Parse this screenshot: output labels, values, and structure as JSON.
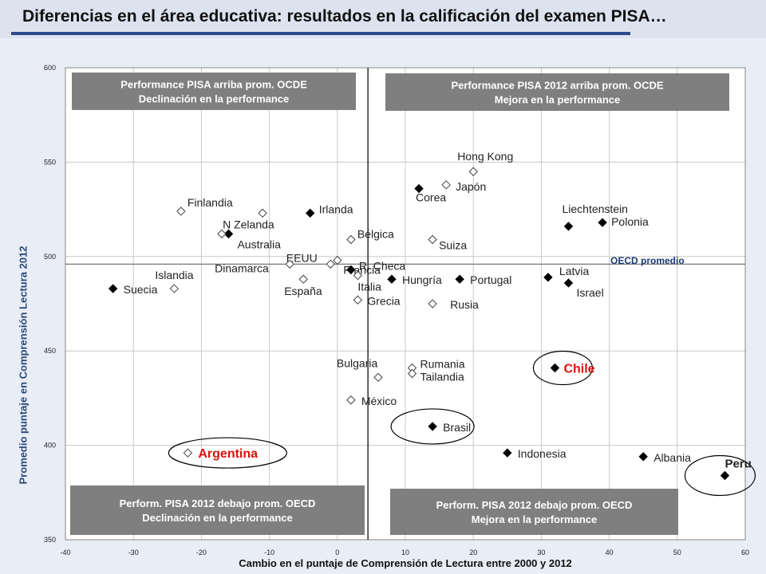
{
  "title": "Diferencias en el área educativa: resultados en la calificación del examen PISA…",
  "chart_data": {
    "type": "scatter",
    "xlabel": "Cambio en el puntaje de Comprensión de Lectura entre 2000 y 2012",
    "ylabel": "Promedio puntaje en Comprensión Lectura 2012",
    "xlim": [
      -40,
      60
    ],
    "ylim": [
      350,
      600
    ],
    "x_ticks": [
      -40,
      -30,
      -20,
      -10,
      0,
      10,
      20,
      30,
      40,
      50,
      60
    ],
    "y_ticks": [
      350,
      400,
      450,
      500,
      550,
      600
    ],
    "grid": true,
    "reference_lines": {
      "oecd_average_y": 496,
      "oecd_change_x": 4.5,
      "oecd_label": "OECD promedio"
    },
    "quadrant_labels": [
      {
        "line1": "Performance PISA arriba prom. OCDE",
        "line2": "Declinación en la performance",
        "position": "top-left"
      },
      {
        "line1": "Performance PISA 2012  arriba prom. OCDE",
        "line2": "Mejora en la performance",
        "position": "top-right"
      },
      {
        "line1": "Perform. PISA 2012 debajo prom. OECD",
        "line2": "Declinación en la performance",
        "position": "bottom-left"
      },
      {
        "line1": "Perform. PISA 2012 debajo prom. OECD",
        "line2": "Mejora en la performance",
        "position": "bottom-right"
      }
    ],
    "points": [
      {
        "label": "Hong Kong",
        "x": 20,
        "y": 545,
        "marker": "open"
      },
      {
        "label": "Japón",
        "x": 16,
        "y": 538,
        "marker": "open"
      },
      {
        "label": "Corea",
        "x": 12,
        "y": 536,
        "marker": "filled"
      },
      {
        "label": "Finlandia",
        "x": -23,
        "y": 524,
        "marker": "open"
      },
      {
        "label": "Irlanda",
        "x": -4,
        "y": 523,
        "marker": "filled"
      },
      {
        "label": "N Zelanda",
        "x": -11,
        "y": 523,
        "marker": "open"
      },
      {
        "label": "Australia",
        "x": -16,
        "y": 512,
        "marker": "filled"
      },
      {
        "label": "",
        "x": -17,
        "y": 512,
        "marker": "open"
      },
      {
        "label": "Bélgica",
        "x": 2,
        "y": 509,
        "marker": "open"
      },
      {
        "label": "Suiza",
        "x": 14,
        "y": 509,
        "marker": "open"
      },
      {
        "label": "Liechtenstein",
        "x": 34,
        "y": 516,
        "marker": "filled"
      },
      {
        "label": "Polonia",
        "x": 39,
        "y": 518,
        "marker": "filled"
      },
      {
        "label": "EEUU",
        "x": 0,
        "y": 498,
        "marker": "open"
      },
      {
        "label": "Francia",
        "x": -1,
        "y": 496,
        "marker": "open"
      },
      {
        "label": "Dinamarca",
        "x": -7,
        "y": 496,
        "marker": "open"
      },
      {
        "label": "R. Checa",
        "x": 2,
        "y": 493,
        "marker": "filled"
      },
      {
        "label": "España",
        "x": -5,
        "y": 488,
        "marker": "open"
      },
      {
        "label": "Italia",
        "x": 3,
        "y": 490,
        "marker": "open"
      },
      {
        "label": "Hungría",
        "x": 8,
        "y": 488,
        "marker": "filled"
      },
      {
        "label": "Portugal",
        "x": 18,
        "y": 488,
        "marker": "filled"
      },
      {
        "label": "Latvia",
        "x": 31,
        "y": 489,
        "marker": "filled"
      },
      {
        "label": "Israel",
        "x": 34,
        "y": 486,
        "marker": "filled"
      },
      {
        "label": "Islandia",
        "x": -24,
        "y": 483,
        "marker": "open"
      },
      {
        "label": "Suecia",
        "x": -33,
        "y": 483,
        "marker": "filled"
      },
      {
        "label": "Grecia",
        "x": 3,
        "y": 477,
        "marker": "open"
      },
      {
        "label": "Rusia",
        "x": 14,
        "y": 475,
        "marker": "open"
      },
      {
        "label": "Bulgaria",
        "x": 6,
        "y": 436,
        "marker": "open"
      },
      {
        "label": "Rumania",
        "x": 11,
        "y": 441,
        "marker": "open"
      },
      {
        "label": "Tailandia",
        "x": 11,
        "y": 438,
        "marker": "open"
      },
      {
        "label": "Chile",
        "x": 32,
        "y": 441,
        "marker": "filled",
        "highlight": true
      },
      {
        "label": "México",
        "x": 2,
        "y": 424,
        "marker": "open"
      },
      {
        "label": "Brasil",
        "x": 14,
        "y": 410,
        "marker": "filled",
        "circled": true
      },
      {
        "label": "Indonesia",
        "x": 25,
        "y": 396,
        "marker": "filled"
      },
      {
        "label": "Albania",
        "x": 45,
        "y": 394,
        "marker": "filled"
      },
      {
        "label": "Argentina",
        "x": -22,
        "y": 396,
        "marker": "open",
        "highlight": true
      },
      {
        "label": "Peru",
        "x": 57,
        "y": 384,
        "marker": "filled",
        "circled": true
      }
    ]
  }
}
